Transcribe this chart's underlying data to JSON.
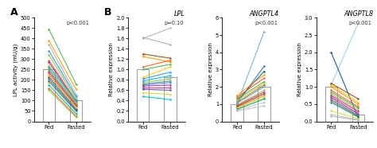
{
  "panel_A": {
    "label": "A",
    "pvalue": "p<0.001",
    "ylabel": "LPL activity (mU/g)",
    "ylim": [
      0,
      500
    ],
    "yticks": [
      0,
      50,
      100,
      150,
      200,
      250,
      300,
      350,
      400,
      450,
      500
    ],
    "bar_fed": 250,
    "bar_fasted": 100,
    "lines": [
      {
        "fed": 445,
        "fasted": 180,
        "color": "#4caf50"
      },
      {
        "fed": 390,
        "fasted": 155,
        "color": "#ff9800"
      },
      {
        "fed": 370,
        "fasted": 130,
        "color": "#b0b0b0"
      },
      {
        "fed": 340,
        "fasted": 120,
        "color": "#2196f3"
      },
      {
        "fed": 320,
        "fasted": 110,
        "color": "#8bc34a"
      },
      {
        "fed": 295,
        "fasted": 100,
        "color": "#ff5722"
      },
      {
        "fed": 285,
        "fasted": 95,
        "color": "#9c27b0"
      },
      {
        "fed": 270,
        "fasted": 90,
        "color": "#ffc107"
      },
      {
        "fed": 265,
        "fasted": 100,
        "color": "#03a9f4"
      },
      {
        "fed": 255,
        "fasted": 85,
        "color": "#4caf50"
      },
      {
        "fed": 245,
        "fasted": 80,
        "color": "#607d8b"
      },
      {
        "fed": 235,
        "fasted": 75,
        "color": "#e91e63"
      },
      {
        "fed": 225,
        "fasted": 70,
        "color": "#ff9800"
      },
      {
        "fed": 215,
        "fasted": 60,
        "color": "#795548"
      },
      {
        "fed": 205,
        "fasted": 55,
        "color": "#009688"
      },
      {
        "fed": 195,
        "fasted": 50,
        "color": "#3f51b5"
      },
      {
        "fed": 185,
        "fasted": 40,
        "color": "#cddc39"
      },
      {
        "fed": 175,
        "fasted": 35,
        "color": "#00bcd4"
      },
      {
        "fed": 160,
        "fasted": 25,
        "color": "#ff5722"
      },
      {
        "fed": 150,
        "fasted": 20,
        "color": "#8bc34a"
      }
    ]
  },
  "panel_B_LPL": {
    "label": "B",
    "gene": "LPL",
    "pvalue": "p=0.10",
    "ylabel": "Relative expression",
    "ylim": [
      0,
      2.0
    ],
    "yticks": [
      0.0,
      0.2,
      0.4,
      0.6,
      0.8,
      1.0,
      1.2,
      1.4,
      1.6,
      1.8,
      2.0
    ],
    "bar_fed": 1.0,
    "bar_fasted": 0.85,
    "lines": [
      {
        "fed": 1.6,
        "fasted": 1.8,
        "color": "#b0b0b0"
      },
      {
        "fed": 1.62,
        "fasted": 1.48,
        "color": "#aaaaaa"
      },
      {
        "fed": 1.3,
        "fasted": 1.22,
        "color": "#8b4513"
      },
      {
        "fed": 1.25,
        "fasted": 1.15,
        "color": "#ff9800"
      },
      {
        "fed": 1.05,
        "fasted": 1.18,
        "color": "#ff5722"
      },
      {
        "fed": 1.0,
        "fasted": 1.1,
        "color": "#4caf50"
      },
      {
        "fed": 0.85,
        "fasted": 1.05,
        "color": "#ffc107"
      },
      {
        "fed": 0.82,
        "fasted": 0.95,
        "color": "#2196f3"
      },
      {
        "fed": 0.78,
        "fasted": 0.88,
        "color": "#03a9f4"
      },
      {
        "fed": 0.75,
        "fasted": 0.82,
        "color": "#8bc34a"
      },
      {
        "fed": 0.72,
        "fasted": 0.78,
        "color": "#607d8b"
      },
      {
        "fed": 0.7,
        "fasted": 0.75,
        "color": "#2196f3"
      },
      {
        "fed": 0.68,
        "fasted": 0.7,
        "color": "#9c27b0"
      },
      {
        "fed": 0.65,
        "fasted": 0.65,
        "color": "#e91e63"
      },
      {
        "fed": 0.62,
        "fasted": 0.6,
        "color": "#3f51b5"
      },
      {
        "fed": 0.55,
        "fasted": 0.52,
        "color": "#cddc39"
      },
      {
        "fed": 0.48,
        "fasted": 0.42,
        "color": "#00bcd4"
      }
    ]
  },
  "panel_B_ANGPTL4": {
    "gene": "ANGPTL4",
    "pvalue": "p<0.001",
    "ylabel": "Relative expression",
    "ylim": [
      0,
      6
    ],
    "yticks": [
      0,
      1,
      2,
      3,
      4,
      5,
      6
    ],
    "bar_fed": 1.0,
    "bar_fasted": 2.0,
    "lines": [
      {
        "fed": 1.0,
        "fasted": 5.2,
        "color": "#6baed6"
      },
      {
        "fed": 1.05,
        "fasted": 3.2,
        "color": "#2171b5"
      },
      {
        "fed": 1.2,
        "fasted": 2.9,
        "color": "#08519c"
      },
      {
        "fed": 1.5,
        "fasted": 2.7,
        "color": "#ff9800"
      },
      {
        "fed": 1.4,
        "fasted": 2.5,
        "color": "#ff5722"
      },
      {
        "fed": 1.3,
        "fasted": 2.3,
        "color": "#4caf50"
      },
      {
        "fed": 1.2,
        "fasted": 2.2,
        "color": "#ffc107"
      },
      {
        "fed": 1.1,
        "fasted": 2.1,
        "color": "#607d8b"
      },
      {
        "fed": 1.05,
        "fasted": 2.0,
        "color": "#9e9e9e"
      },
      {
        "fed": 0.95,
        "fasted": 1.8,
        "color": "#8bc34a"
      },
      {
        "fed": 0.9,
        "fasted": 1.7,
        "color": "#e91e63"
      },
      {
        "fed": 0.85,
        "fasted": 1.6,
        "color": "#795548"
      },
      {
        "fed": 0.8,
        "fasted": 1.5,
        "color": "#ff9800"
      },
      {
        "fed": 0.75,
        "fasted": 1.4,
        "color": "#cddc39"
      },
      {
        "fed": 0.7,
        "fasted": 1.3,
        "color": "#009688"
      },
      {
        "fed": 0.65,
        "fasted": 1.1,
        "color": "#c0c0c0"
      },
      {
        "fed": 0.6,
        "fasted": 0.9,
        "color": "#bdbdbd"
      }
    ]
  },
  "panel_B_ANGPTL8": {
    "gene": "ANGPTL8",
    "pvalue": "p<0.001",
    "ylabel": "Relative expression",
    "ylim": [
      0,
      3.0
    ],
    "yticks": [
      0.0,
      0.5,
      1.0,
      1.5,
      2.0,
      2.5,
      3.0
    ],
    "bar_fed": 1.0,
    "bar_fasted": 0.2,
    "lines": [
      {
        "fed": 1.05,
        "fasted": 2.85,
        "color": "#9ecae1"
      },
      {
        "fed": 2.0,
        "fasted": 0.1,
        "color": "#08519c"
      },
      {
        "fed": 1.1,
        "fasted": 0.65,
        "color": "#8b4513"
      },
      {
        "fed": 1.05,
        "fasted": 0.55,
        "color": "#ffc107"
      },
      {
        "fed": 1.0,
        "fasted": 0.5,
        "color": "#ff9800"
      },
      {
        "fed": 0.9,
        "fasted": 0.42,
        "color": "#ff5722"
      },
      {
        "fed": 0.85,
        "fasted": 0.38,
        "color": "#4caf50"
      },
      {
        "fed": 0.8,
        "fasted": 0.32,
        "color": "#8bc34a"
      },
      {
        "fed": 0.75,
        "fasted": 0.28,
        "color": "#e91e63"
      },
      {
        "fed": 0.7,
        "fasted": 0.22,
        "color": "#9c27b0"
      },
      {
        "fed": 0.65,
        "fasted": 0.18,
        "color": "#607d8b"
      },
      {
        "fed": 0.6,
        "fasted": 0.15,
        "color": "#795548"
      },
      {
        "fed": 0.55,
        "fasted": 0.12,
        "color": "#009688"
      },
      {
        "fed": 0.3,
        "fasted": 0.08,
        "color": "#cddc39"
      },
      {
        "fed": 0.2,
        "fasted": 0.05,
        "color": "#bdbdbd"
      },
      {
        "fed": 0.15,
        "fasted": 0.03,
        "color": "#b0b0b0"
      }
    ]
  }
}
